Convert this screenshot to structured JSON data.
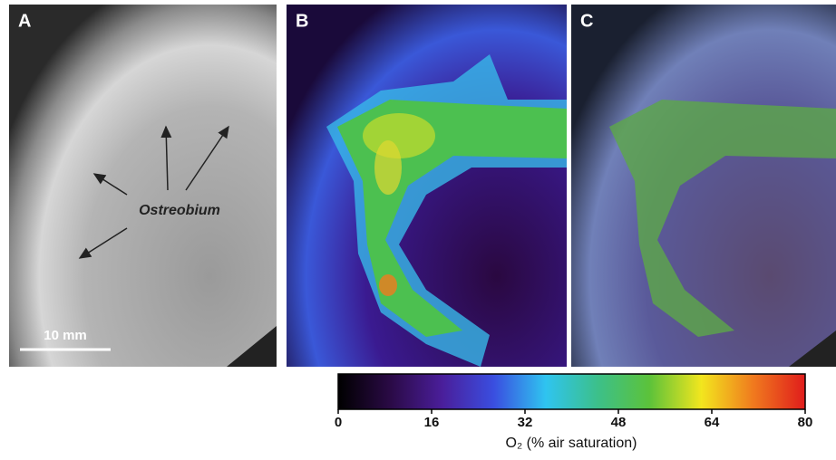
{
  "panels": [
    {
      "label": "A"
    },
    {
      "label": "B"
    },
    {
      "label": "C"
    }
  ],
  "annotations": {
    "organism": "Ostreobium",
    "scale_bar": "10 mm"
  },
  "chart_data": {
    "type": "colorbar",
    "xlabel": "O₂ (% air saturation)",
    "xlim": [
      0,
      80
    ],
    "xticks": [
      0,
      16,
      32,
      48,
      64,
      80
    ],
    "colormap": [
      "#000000",
      "#2a0a45",
      "#4a1e9a",
      "#3a4ee0",
      "#2fc4f0",
      "#3cc08a",
      "#5cc23a",
      "#f2e61e",
      "#f07a1e",
      "#e01c1c"
    ]
  }
}
